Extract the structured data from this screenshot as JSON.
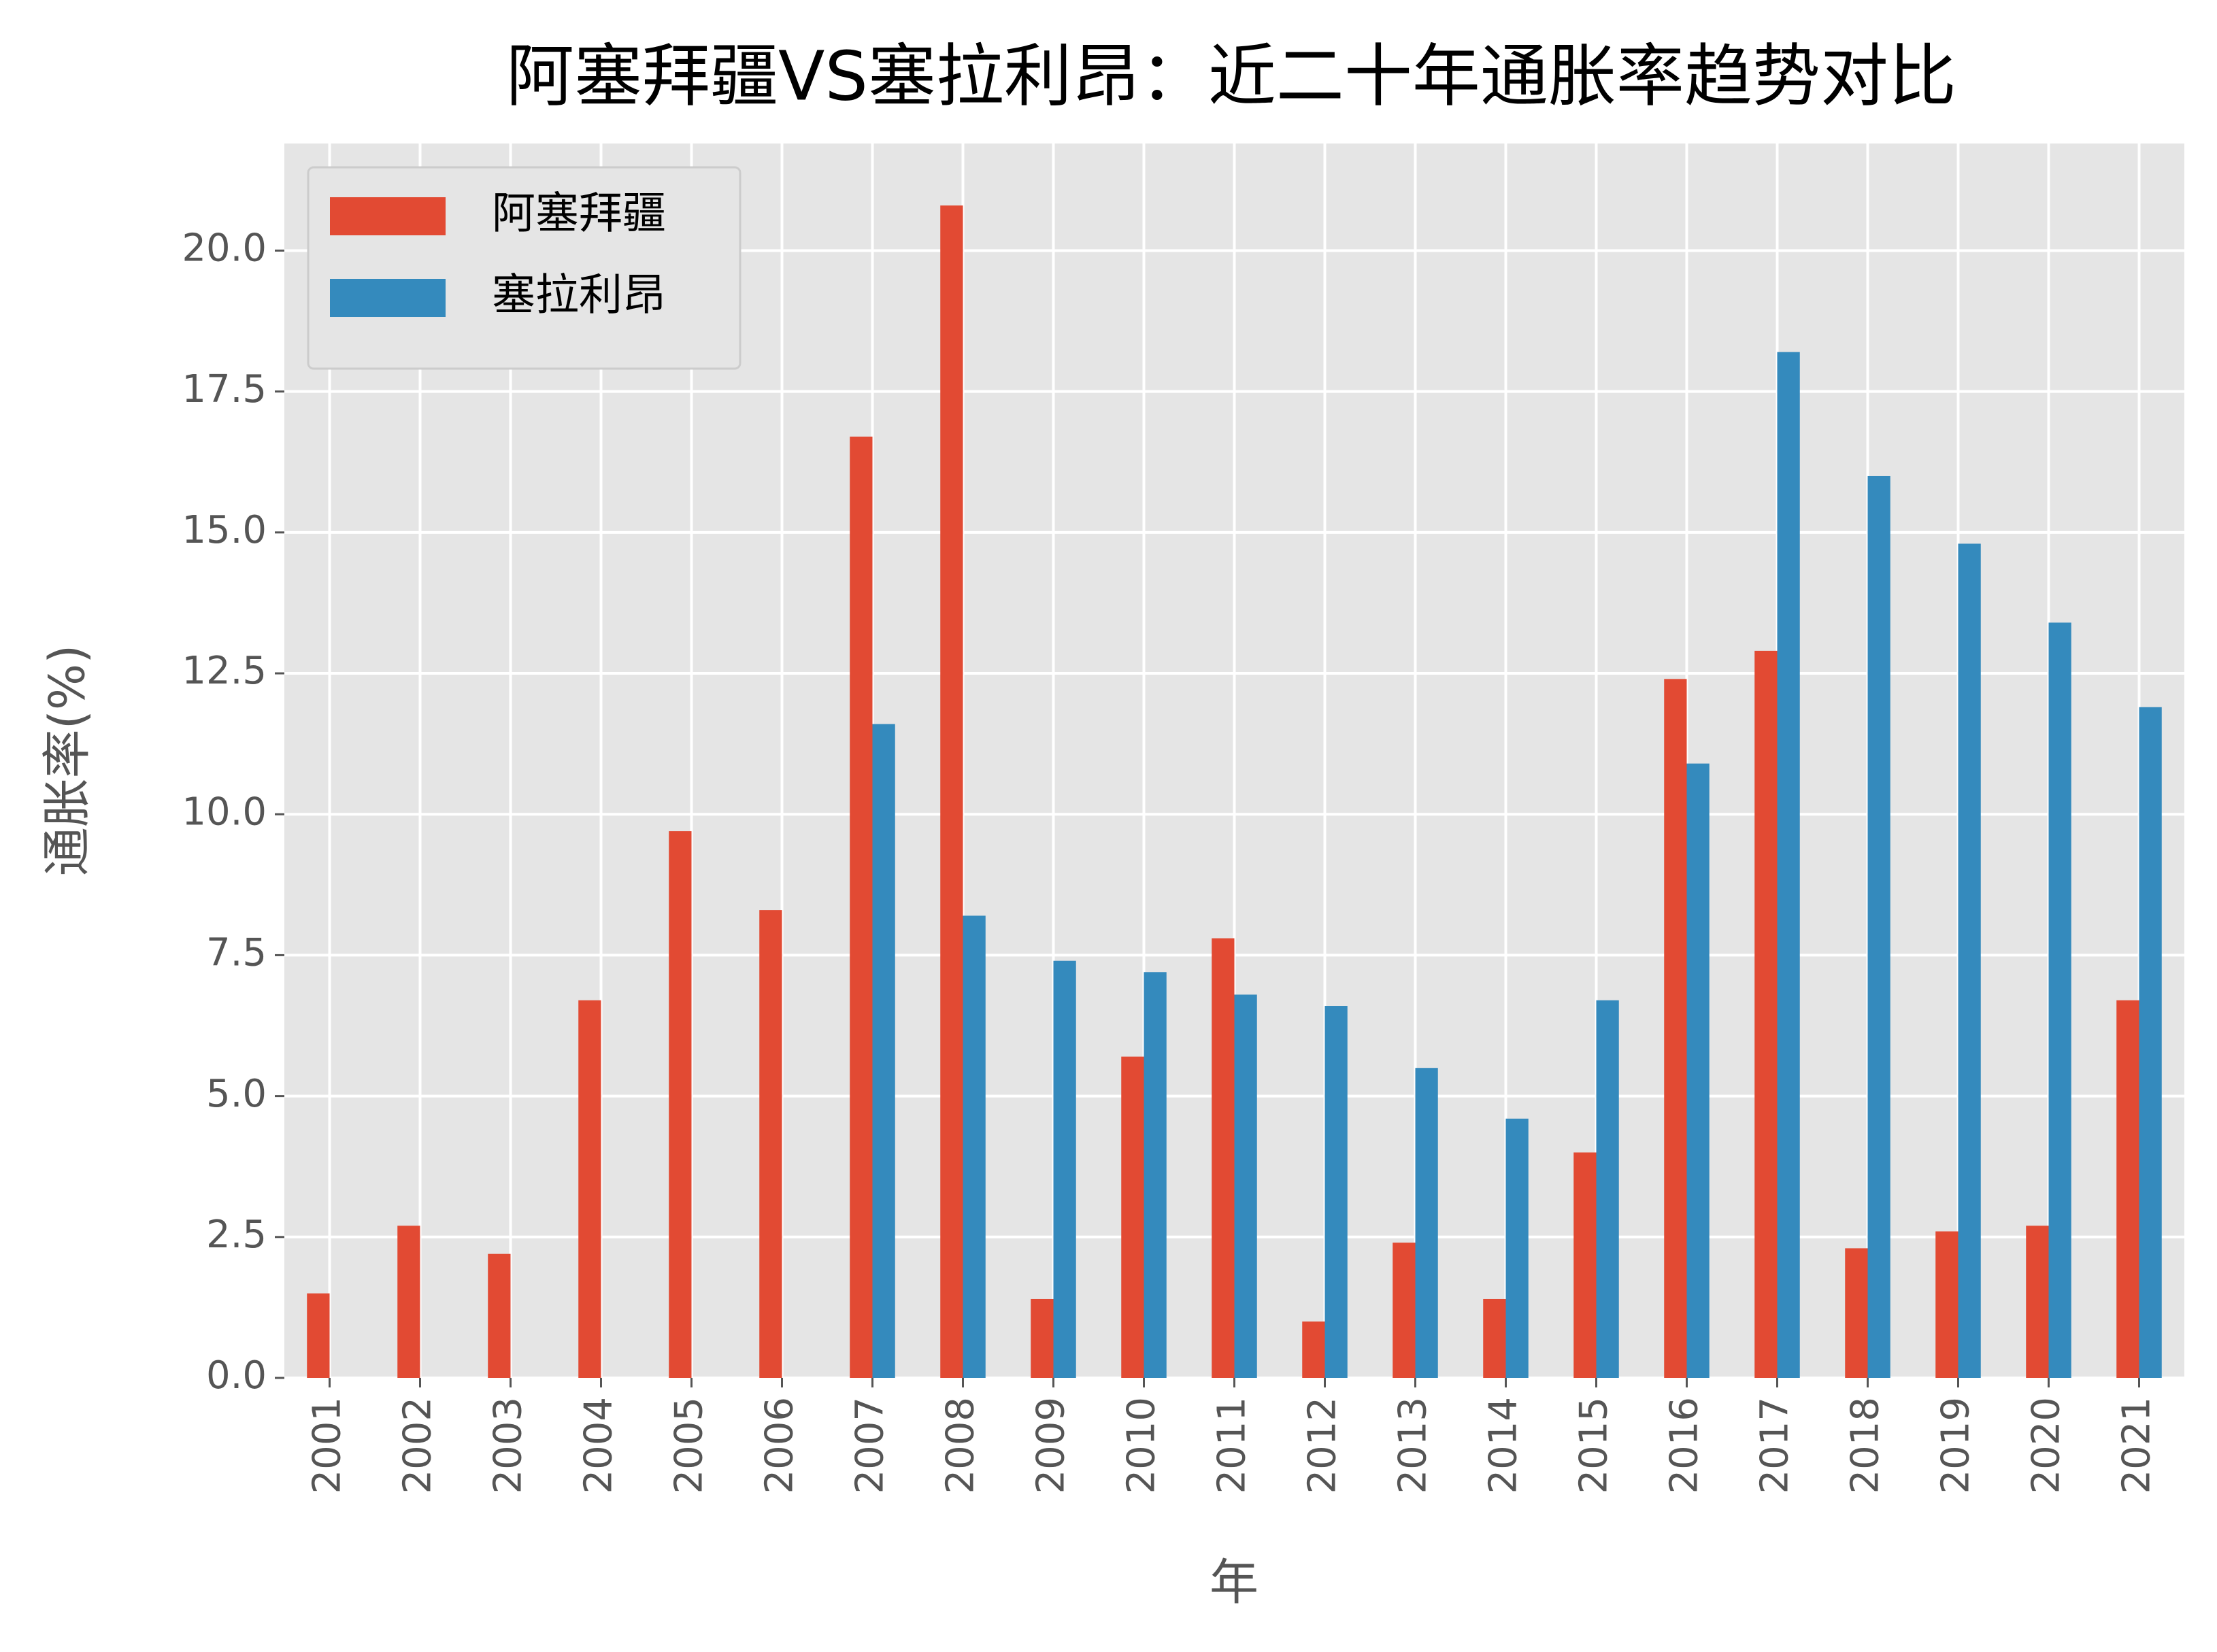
{
  "chart_data": {
    "type": "bar",
    "title": "阿塞拜疆VS塞拉利昂：近二十年通胀率趋势对比",
    "x_label": "年",
    "y_label": "通胀率(%)",
    "categories": [
      "2001",
      "2002",
      "2003",
      "2004",
      "2005",
      "2006",
      "2007",
      "2008",
      "2009",
      "2010",
      "2011",
      "2012",
      "2013",
      "2014",
      "2015",
      "2016",
      "2017",
      "2018",
      "2019",
      "2020",
      "2021"
    ],
    "series": [
      {
        "name": "阿塞拜疆",
        "color": "#E24A33",
        "values": [
          1.5,
          2.7,
          2.2,
          6.7,
          9.7,
          8.3,
          16.7,
          20.8,
          1.4,
          5.7,
          7.8,
          1.0,
          2.4,
          1.4,
          4.0,
          12.4,
          12.9,
          2.3,
          2.6,
          2.7,
          6.7
        ]
      },
      {
        "name": "塞拉利昂",
        "color": "#348ABD",
        "values": [
          null,
          null,
          null,
          null,
          null,
          null,
          11.6,
          8.2,
          7.4,
          7.2,
          6.8,
          6.6,
          5.5,
          4.6,
          6.7,
          10.9,
          18.2,
          16.0,
          14.8,
          13.4,
          11.9
        ]
      }
    ],
    "ylim": [
      0,
      21.9
    ],
    "yticks": [
      {
        "value": 0,
        "label": "0.0"
      },
      2.5,
      {
        "value": 5,
        "label": "5.0"
      },
      7.5,
      {
        "value": 10,
        "label": "10.0"
      },
      12.5,
      {
        "value": 15,
        "label": "15.0"
      },
      17.5,
      {
        "value": 20,
        "label": "20.0"
      }
    ],
    "grid": true,
    "legend": "upper left"
  }
}
